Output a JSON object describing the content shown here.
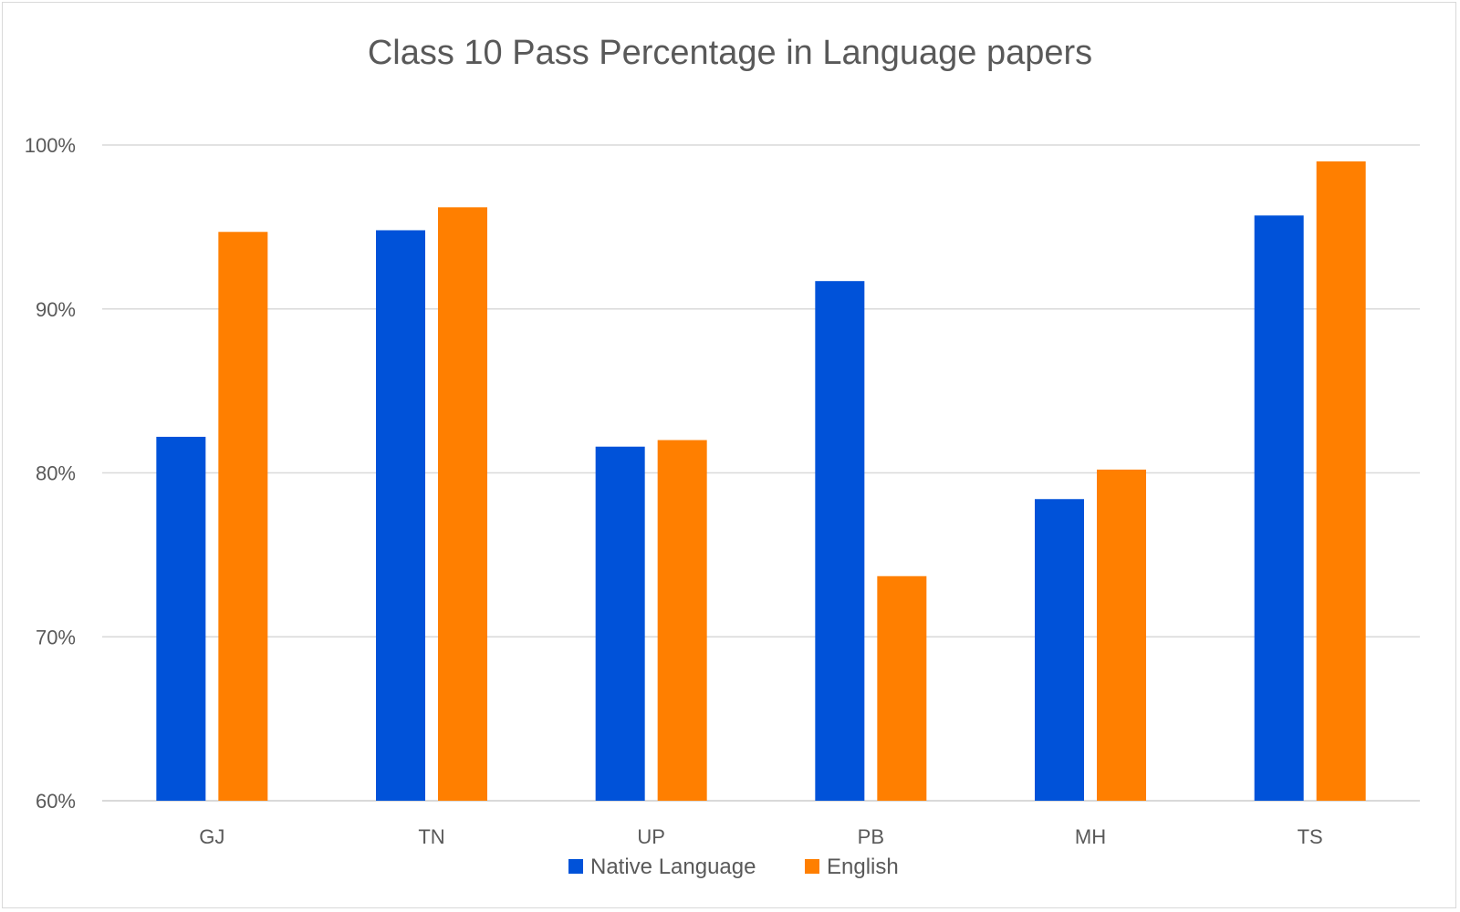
{
  "chart_data": {
    "type": "bar",
    "title": "Class 10 Pass Percentage in Language papers",
    "xlabel": "",
    "ylabel": "",
    "categories": [
      "GJ",
      "TN",
      "UP",
      "PB",
      "MH",
      "TS"
    ],
    "series": [
      {
        "name": "Native Language",
        "color": "#0052d9",
        "values": [
          82.2,
          94.8,
          81.6,
          91.7,
          78.4,
          95.7
        ]
      },
      {
        "name": "English",
        "color": "#ff7f00",
        "values": [
          94.7,
          96.2,
          82.0,
          73.7,
          80.2,
          99.0
        ]
      }
    ],
    "ylim": [
      60,
      100
    ],
    "yticks": [
      60,
      70,
      80,
      90,
      100
    ],
    "ytick_labels": [
      "60%",
      "70%",
      "80%",
      "90%",
      "100%"
    ],
    "grid": true,
    "legend_position": "bottom"
  }
}
